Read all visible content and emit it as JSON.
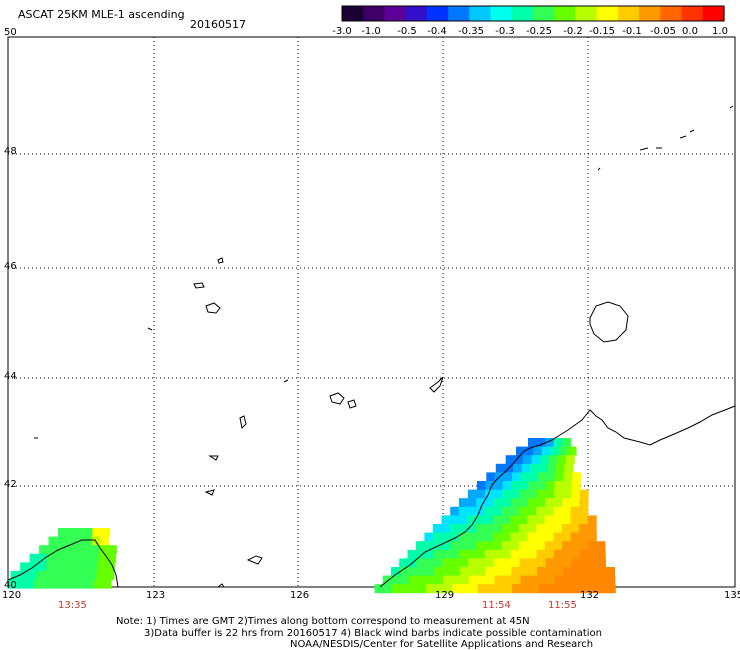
{
  "header": {
    "title": "ASCAT 25KM MLE-1 ascending",
    "date": "20160517"
  },
  "colorbar": {
    "labels": [
      "-3.0",
      "-1.0",
      "-0.5",
      "-0.4",
      "-0.35",
      "-0.3",
      "-0.25",
      "-0.2",
      "-0.15",
      "-0.1",
      "-0.05",
      "0.0",
      "1.0"
    ],
    "colors": [
      "#1a0033",
      "#3d0066",
      "#5c0099",
      "#3311cc",
      "#0033ff",
      "#0077ff",
      "#00c8ff",
      "#00ffee",
      "#00ffaa",
      "#33ff55",
      "#66ff00",
      "#b8ff00",
      "#ffff00",
      "#ffcc00",
      "#ff9900",
      "#ff6600",
      "#ff3300",
      "#ff0000"
    ]
  },
  "map": {
    "lon_labels": [
      "120",
      "123",
      "126",
      "129",
      "132",
      "135"
    ],
    "lat_labels": [
      "50",
      "48",
      "46",
      "44",
      "42",
      "40"
    ],
    "times": [
      "13:35",
      "11:54",
      "11:55"
    ]
  },
  "footer": {
    "line1": "Note: 1) Times are GMT 2)Times along bottom correspond to measurement at 45N",
    "line2": "3)Data buffer is 22 hrs from 20160517 4) Black wind barbs indicate possible contamination",
    "line3": "NOAA/NESDIS/Center for Satellite Applications and Research"
  }
}
